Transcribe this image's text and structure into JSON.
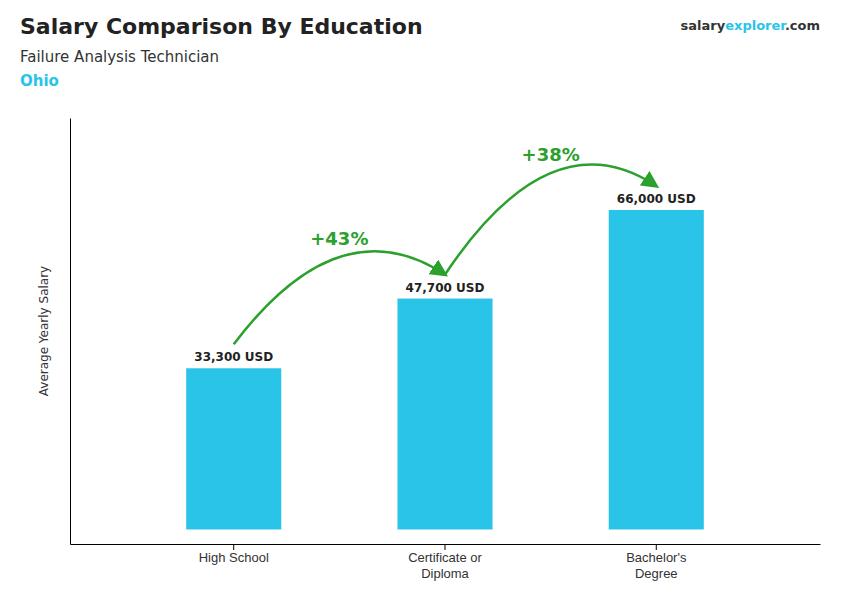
{
  "chart_data": {
    "type": "bar",
    "title": "Salary Comparison By Education",
    "subtitle": "Failure Analysis Technician",
    "annotations": [
      "Ohio",
      "salary",
      "explorer",
      ".com",
      "+43%",
      "+38%"
    ],
    "ylabel": "Average Yearly Salary",
    "categories": [
      "High School",
      "Certificate or\nDiploma",
      "Bachelor's\nDegree"
    ],
    "values": [
      33300,
      47700,
      66000
    ],
    "value_labels": [
      "33,300 USD",
      "47,700 USD",
      "66,000 USD"
    ],
    "data_labels": true,
    "color": "#29C4E8",
    "ylim": [
      -3000,
      85000
    ],
    "grid": false,
    "tick_labels": "x"
  }
}
